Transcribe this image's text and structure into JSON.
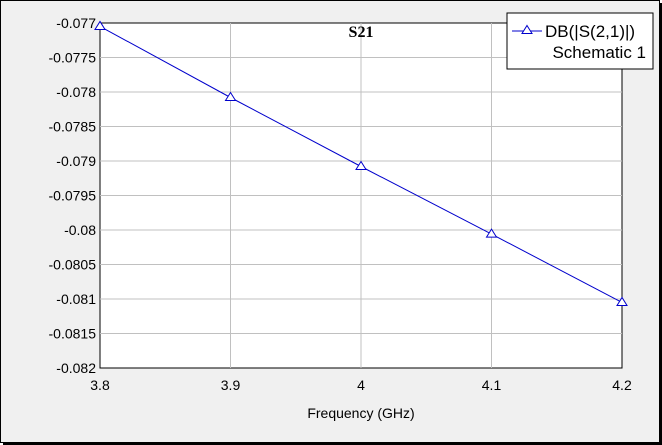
{
  "chart_data": {
    "type": "line",
    "title": "S21",
    "xlabel": "Frequency (GHz)",
    "ylabel": "",
    "xlim": [
      3.8,
      4.2
    ],
    "ylim": [
      -0.082,
      -0.077
    ],
    "x_ticks": [
      "3.8",
      "3.9",
      "4",
      "4.1",
      "4.2"
    ],
    "y_ticks": [
      "-0.077",
      "-0.0775",
      "-0.078",
      "-0.0785",
      "-0.079",
      "-0.0795",
      "-0.08",
      "-0.0805",
      "-0.081",
      "-0.0815",
      "-0.082"
    ],
    "grid": true,
    "legend_position": "top-right",
    "series": [
      {
        "name": "DB(|S(2,1)|)",
        "source": "Schematic 1",
        "color": "#0000cc",
        "marker": "triangle",
        "x": [
          3.8,
          3.9,
          4.0,
          4.1,
          4.2
        ],
        "y": [
          -0.07705,
          -0.07808,
          -0.07908,
          -0.08006,
          -0.08105
        ]
      }
    ]
  }
}
